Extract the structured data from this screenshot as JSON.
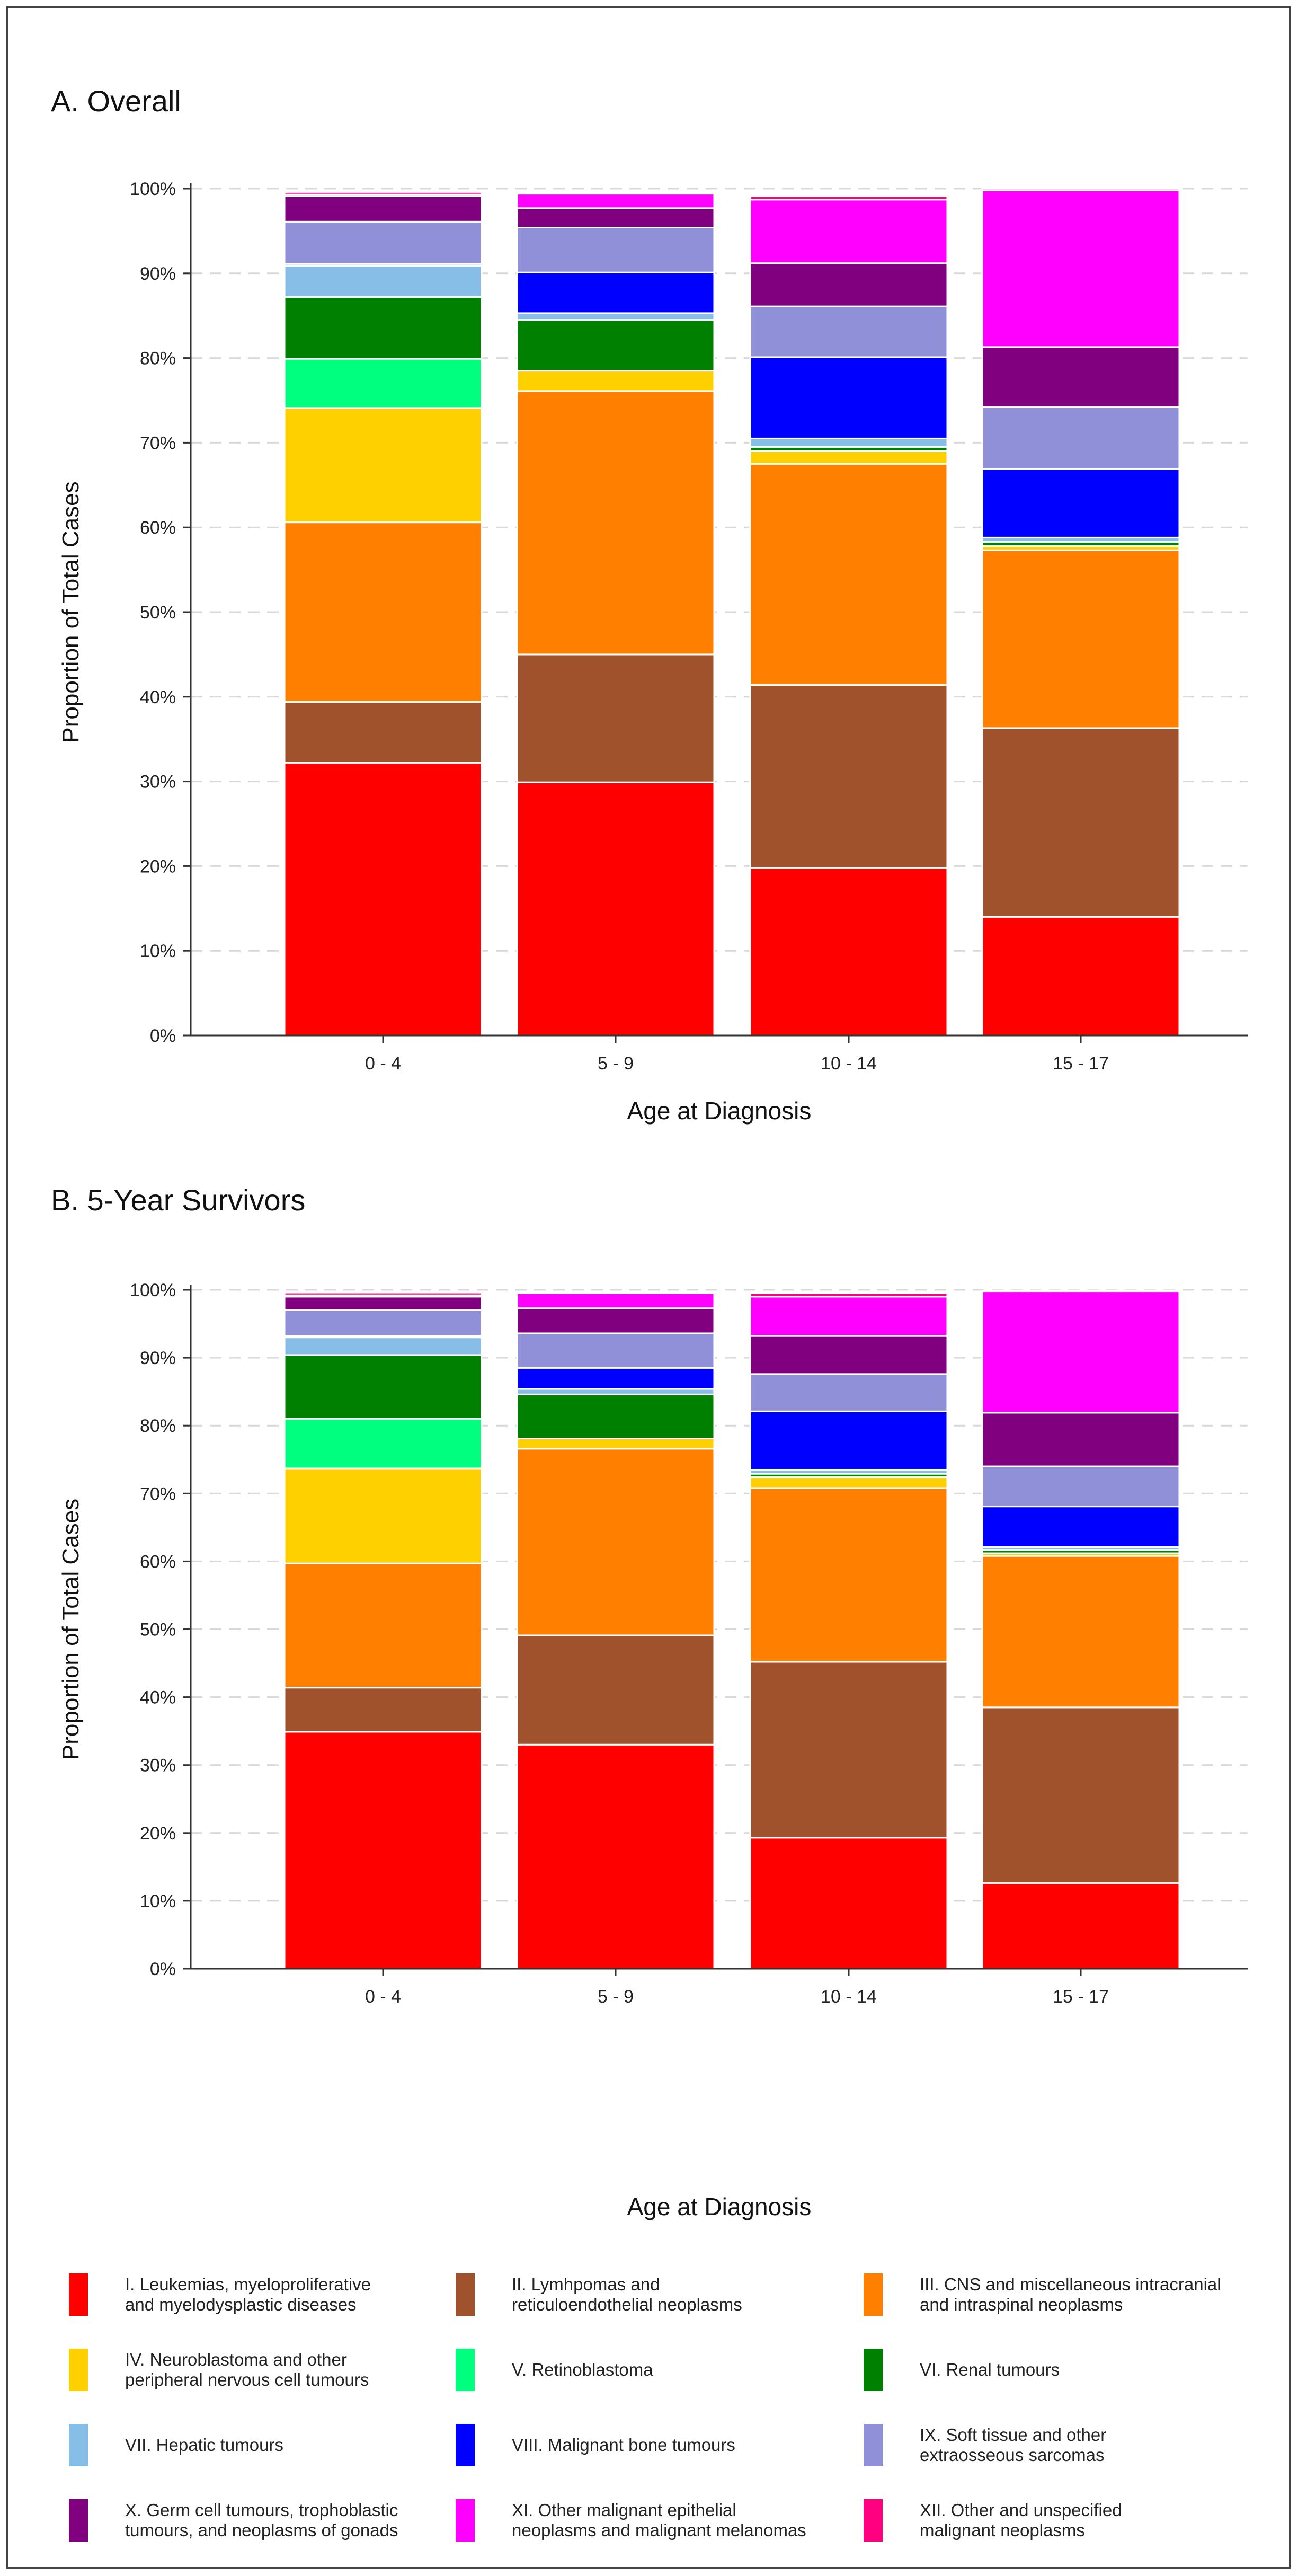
{
  "categories": [
    {
      "name": "I. Leukemias, myeloproliferative\nand myelodysplastic diseases",
      "color": "#FF0000"
    },
    {
      "name": "II. Lymhpomas and\nreticuloendothelial neoplasms",
      "color": "#A0522D"
    },
    {
      "name": "III. CNS and miscellaneous intracranial\nand intraspinal neoplasms",
      "color": "#FF8000"
    },
    {
      "name": "IV. Neuroblastoma and other\nperipheral nervous cell tumours",
      "color": "#FFD000"
    },
    {
      "name": "V. Retinoblastoma",
      "color": "#00FF7F"
    },
    {
      "name": "VI. Renal tumours",
      "color": "#008000"
    },
    {
      "name": "VII. Hepatic tumours",
      "color": "#87BEE8"
    },
    {
      "name": "VIII. Malignant bone tumours",
      "color": "#0000FF"
    },
    {
      "name": "IX. Soft tissue and other\nextraosseous sarcomas",
      "color": "#9090D8"
    },
    {
      "name": "X. Germ cell tumours, trophoblastic\ntumours, and neoplasms of gonads",
      "color": "#800080"
    },
    {
      "name": "XI. Other malignant epithelial\nneoplasms and malignant melanomas",
      "color": "#FF00FF"
    },
    {
      "name": "XII. Other and unspecified\nmalignant neoplasms",
      "color": "#FF0080"
    }
  ],
  "chart_data": [
    {
      "type": "bar",
      "stacked": true,
      "title": "A. Overall",
      "xlabel": "Age at Diagnosis",
      "ylabel": "Proportion of Total Cases",
      "ylim": [
        0,
        100
      ],
      "yticks": [
        "0%",
        "10%",
        "20%",
        "30%",
        "40%",
        "50%",
        "60%",
        "70%",
        "80%",
        "90%",
        "100%"
      ],
      "categories": [
        "0 - 4",
        "5 - 9",
        "10 - 14",
        "15 - 17"
      ],
      "series": [
        {
          "name": "I",
          "values": [
            32.2,
            29.9,
            19.8,
            14.0
          ]
        },
        {
          "name": "II",
          "values": [
            7.2,
            15.1,
            21.6,
            22.3
          ]
        },
        {
          "name": "III",
          "values": [
            21.2,
            31.1,
            26.1,
            21.0
          ]
        },
        {
          "name": "IV",
          "values": [
            13.5,
            2.4,
            1.5,
            0.5
          ]
        },
        {
          "name": "V",
          "values": [
            5.8,
            0.0,
            0.0,
            0.0
          ]
        },
        {
          "name": "VI",
          "values": [
            7.3,
            6.0,
            0.5,
            0.5
          ]
        },
        {
          "name": "VII",
          "values": [
            3.7,
            0.8,
            1.0,
            0.5
          ]
        },
        {
          "name": "VIII",
          "values": [
            0.2,
            4.8,
            9.6,
            8.1
          ]
        },
        {
          "name": "IX",
          "values": [
            5.0,
            5.3,
            6.0,
            7.3
          ]
        },
        {
          "name": "X",
          "values": [
            3.0,
            2.3,
            5.1,
            7.1
          ]
        },
        {
          "name": "XI",
          "values": [
            0.2,
            1.7,
            7.5,
            18.5
          ]
        },
        {
          "name": "XII",
          "values": [
            0.3,
            0.1,
            0.4,
            0.2
          ]
        }
      ]
    },
    {
      "type": "bar",
      "stacked": true,
      "title": "B. 5-Year Survivors",
      "xlabel": "Age at Diagnosis",
      "ylabel": "Proportion of Total Cases",
      "ylim": [
        0,
        100
      ],
      "yticks": [
        "0%",
        "10%",
        "20%",
        "30%",
        "40%",
        "50%",
        "60%",
        "70%",
        "80%",
        "90%",
        "100%"
      ],
      "categories": [
        "0 - 4",
        "5 - 9",
        "10 - 14",
        "15 - 17"
      ],
      "series": [
        {
          "name": "I",
          "values": [
            34.9,
            33.0,
            19.3,
            12.6
          ]
        },
        {
          "name": "II",
          "values": [
            6.5,
            16.1,
            25.9,
            25.9
          ]
        },
        {
          "name": "III",
          "values": [
            18.3,
            27.5,
            25.6,
            22.3
          ]
        },
        {
          "name": "IV",
          "values": [
            14.0,
            1.5,
            1.6,
            0.4
          ]
        },
        {
          "name": "V",
          "values": [
            7.3,
            0.0,
            0.0,
            0.0
          ]
        },
        {
          "name": "VI",
          "values": [
            9.4,
            6.5,
            0.5,
            0.5
          ]
        },
        {
          "name": "VII",
          "values": [
            2.6,
            0.8,
            0.6,
            0.4
          ]
        },
        {
          "name": "VIII",
          "values": [
            0.2,
            3.1,
            8.6,
            6.0
          ]
        },
        {
          "name": "IX",
          "values": [
            3.8,
            5.1,
            5.5,
            5.9
          ]
        },
        {
          "name": "X",
          "values": [
            2.0,
            3.7,
            5.6,
            7.9
          ]
        },
        {
          "name": "XI",
          "values": [
            0.2,
            2.2,
            5.8,
            17.9
          ]
        },
        {
          "name": "XII",
          "values": [
            0.4,
            0.0,
            0.5,
            0.1
          ]
        }
      ]
    }
  ]
}
